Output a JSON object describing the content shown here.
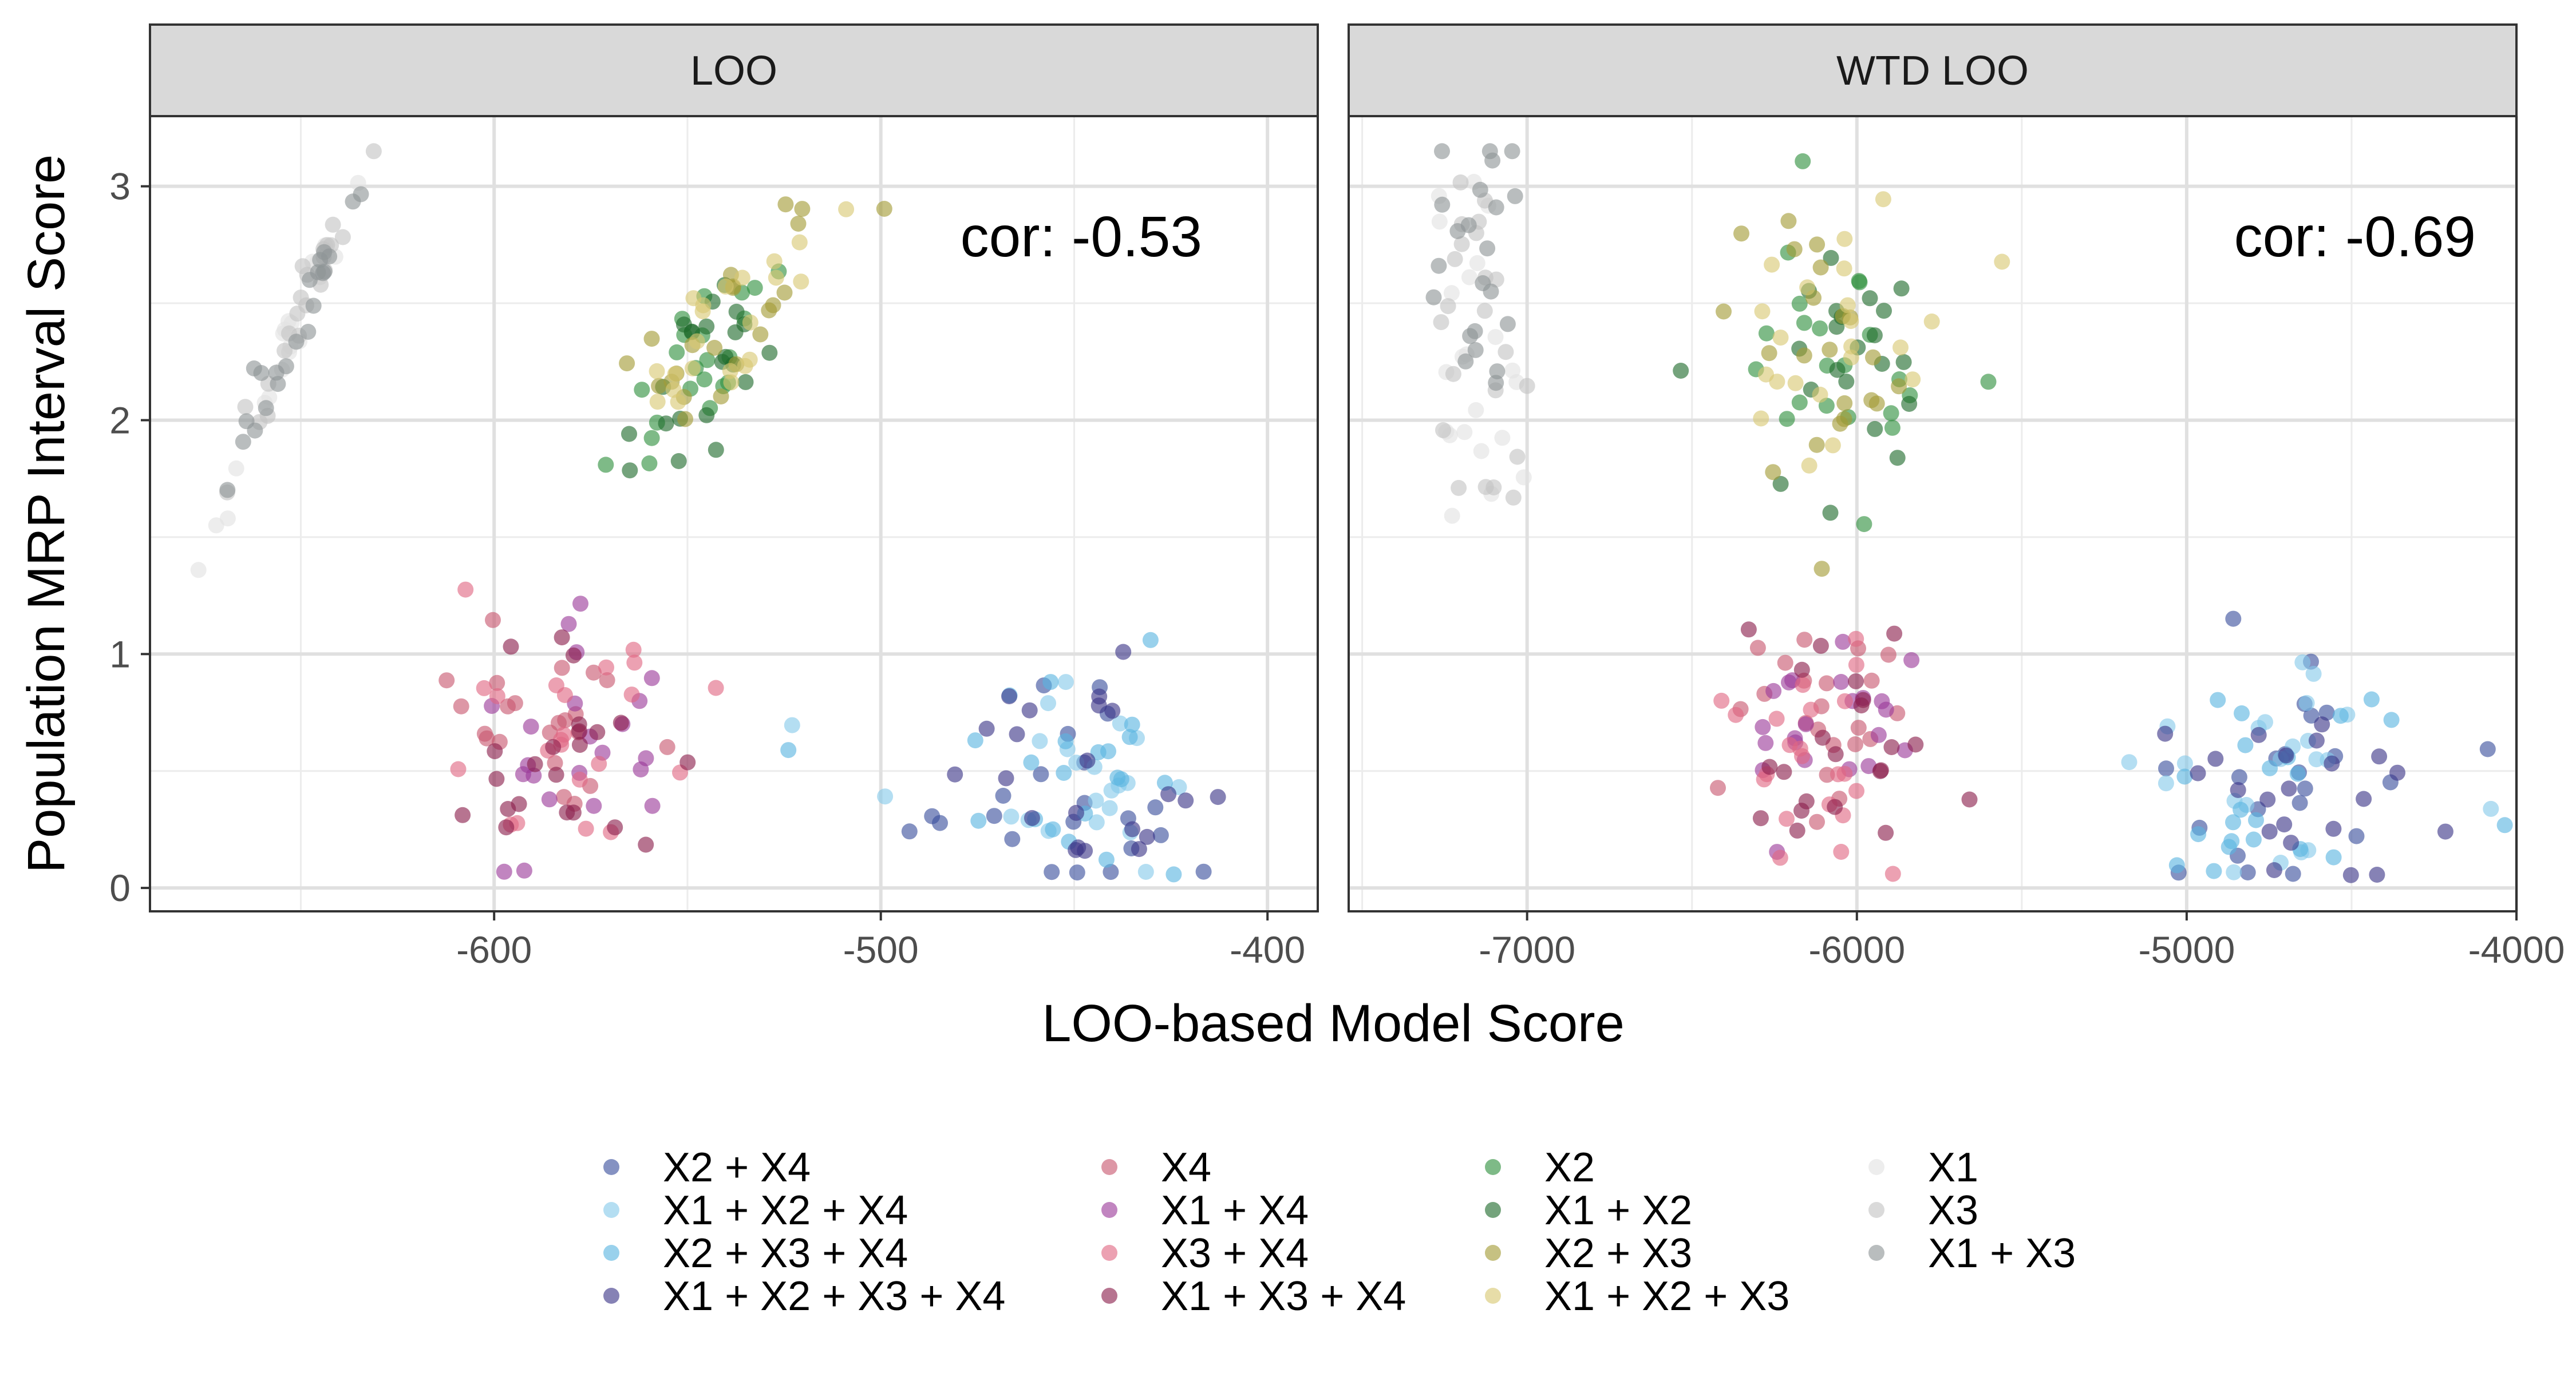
{
  "chart_data": {
    "type": "scatter",
    "xlabel": "LOO-based Model Score",
    "ylabel": "Population MRP Interval Score",
    "grid": true,
    "legend_position": "bottom",
    "y_ticks": [
      "0",
      "1",
      "2",
      "3"
    ],
    "ylim": [
      -0.1,
      3.3
    ],
    "panels": [
      {
        "strip": "LOO",
        "annotation": "cor: -0.53",
        "xlim": [
          -689,
          -387
        ],
        "x_ticks": [
          "-600",
          "-500",
          "-400"
        ],
        "x_tick_values": [
          -600,
          -500,
          -400
        ]
      },
      {
        "strip": "WTD LOO",
        "annotation": "cor: -0.69",
        "xlim": [
          -7541,
          -4000
        ],
        "x_ticks": [
          "-7000",
          "-6000",
          "-5000",
          "-4000"
        ],
        "x_tick_values": [
          -7000,
          -6000,
          -5000,
          -4000
        ]
      }
    ],
    "series": [
      {
        "name": "X2 + X4",
        "color": "#3a4f9c",
        "cluster": "blue",
        "loo": {
          "cx": -448,
          "sx": 22,
          "cy": 0.48,
          "sy": 0.26,
          "rho": 0.0
        },
        "wtd": {
          "cx": -4650,
          "sx": 230,
          "cy": 0.48,
          "sy": 0.26,
          "rho": 0.0
        }
      },
      {
        "name": "X1 + X2 + X4",
        "color": "#86c9ea",
        "cluster": "blue",
        "loo": {
          "cx": -452,
          "sx": 22,
          "cy": 0.48,
          "sy": 0.26,
          "rho": 0.0
        },
        "wtd": {
          "cx": -4680,
          "sx": 230,
          "cy": 0.48,
          "sy": 0.26,
          "rho": 0.0
        }
      },
      {
        "name": "X2 + X3 + X4",
        "color": "#5ab4e0",
        "cluster": "blue",
        "loo": {
          "cx": -447,
          "sx": 22,
          "cy": 0.48,
          "sy": 0.26,
          "rho": 0.0
        },
        "wtd": {
          "cx": -4640,
          "sx": 230,
          "cy": 0.48,
          "sy": 0.26,
          "rho": 0.0
        }
      },
      {
        "name": "X1 + X2 + X3 + X4",
        "color": "#3c3587",
        "cluster": "blue",
        "loo": {
          "cx": -450,
          "sx": 22,
          "cy": 0.48,
          "sy": 0.26,
          "rho": 0.0
        },
        "wtd": {
          "cx": -4660,
          "sx": 230,
          "cy": 0.48,
          "sy": 0.26,
          "rho": 0.0
        }
      },
      {
        "name": "X4",
        "color": "#c8576f",
        "cluster": "red",
        "loo": {
          "cx": -583,
          "sx": 14,
          "cy": 0.65,
          "sy": 0.27,
          "rho": 0.0
        },
        "wtd": {
          "cx": -6100,
          "sx": 140,
          "cy": 0.6,
          "sy": 0.27,
          "rho": 0.0
        }
      },
      {
        "name": "X1 + X4",
        "color": "#9b3a99",
        "cluster": "red",
        "loo": {
          "cx": -581,
          "sx": 14,
          "cy": 0.66,
          "sy": 0.27,
          "rho": 0.0
        },
        "wtd": {
          "cx": -6090,
          "sx": 140,
          "cy": 0.62,
          "sy": 0.27,
          "rho": 0.0
        }
      },
      {
        "name": "X3 + X4",
        "color": "#e06783",
        "cluster": "red",
        "loo": {
          "cx": -582,
          "sx": 14,
          "cy": 0.65,
          "sy": 0.27,
          "rho": 0.0
        },
        "wtd": {
          "cx": -6080,
          "sx": 140,
          "cy": 0.6,
          "sy": 0.27,
          "rho": 0.0
        }
      },
      {
        "name": "X1 + X3 + X4",
        "color": "#8a1f4c",
        "cluster": "red",
        "loo": {
          "cx": -580,
          "sx": 14,
          "cy": 0.67,
          "sy": 0.27,
          "rho": 0.0
        },
        "wtd": {
          "cx": -6070,
          "sx": 140,
          "cy": 0.62,
          "sy": 0.27,
          "rho": 0.0
        }
      },
      {
        "name": "X2",
        "color": "#2f8f3e",
        "cluster": "green",
        "loo": {
          "cx": -548,
          "sx": 14,
          "cy": 2.2,
          "sy": 0.28,
          "rho": 0.8
        },
        "wtd": {
          "cx": -6050,
          "sx": 170,
          "cy": 2.2,
          "sy": 0.3,
          "rho": 0.0
        }
      },
      {
        "name": "X1 + X2",
        "color": "#1e6b2c",
        "cluster": "green",
        "loo": {
          "cx": -546,
          "sx": 14,
          "cy": 2.22,
          "sy": 0.28,
          "rho": 0.8
        },
        "wtd": {
          "cx": -6040,
          "sx": 170,
          "cy": 2.22,
          "sy": 0.3,
          "rho": 0.0
        }
      },
      {
        "name": "X2 + X3",
        "color": "#a39b36",
        "cluster": "green",
        "loo": {
          "cx": -540,
          "sx": 14,
          "cy": 2.4,
          "sy": 0.28,
          "rho": 0.8
        },
        "wtd": {
          "cx": -6070,
          "sx": 180,
          "cy": 2.35,
          "sy": 0.3,
          "rho": 0.0
        }
      },
      {
        "name": "X1 + X2 + X3",
        "color": "#d9c873",
        "cluster": "green",
        "loo": {
          "cx": -538,
          "sx": 14,
          "cy": 2.42,
          "sy": 0.28,
          "rho": 0.8
        },
        "wtd": {
          "cx": -6080,
          "sx": 180,
          "cy": 2.37,
          "sy": 0.3,
          "rho": 0.0
        }
      },
      {
        "name": "X1",
        "color": "#e2e2e2",
        "cluster": "gray",
        "loo": {
          "cx": -653,
          "sx": 9,
          "cy": 2.35,
          "sy": 0.36,
          "rho": 0.97
        },
        "wtd": {
          "cx": -7170,
          "sx": 75,
          "cy": 2.35,
          "sy": 0.38,
          "rho": 0.0
        }
      },
      {
        "name": "X3",
        "color": "#c4c4c4",
        "cluster": "gray",
        "loo": {
          "cx": -652,
          "sx": 9,
          "cy": 2.4,
          "sy": 0.36,
          "rho": 0.97
        },
        "wtd": {
          "cx": -7160,
          "sx": 75,
          "cy": 2.42,
          "sy": 0.38,
          "rho": 0.0
        }
      },
      {
        "name": "X1 + X3",
        "color": "#8e9496",
        "cluster": "gray",
        "loo": {
          "cx": -650,
          "sx": 9,
          "cy": 2.45,
          "sy": 0.36,
          "rho": 0.97
        },
        "wtd": {
          "cx": -7150,
          "sx": 75,
          "cy": 2.48,
          "sy": 0.38,
          "rho": 0.0
        }
      }
    ]
  }
}
